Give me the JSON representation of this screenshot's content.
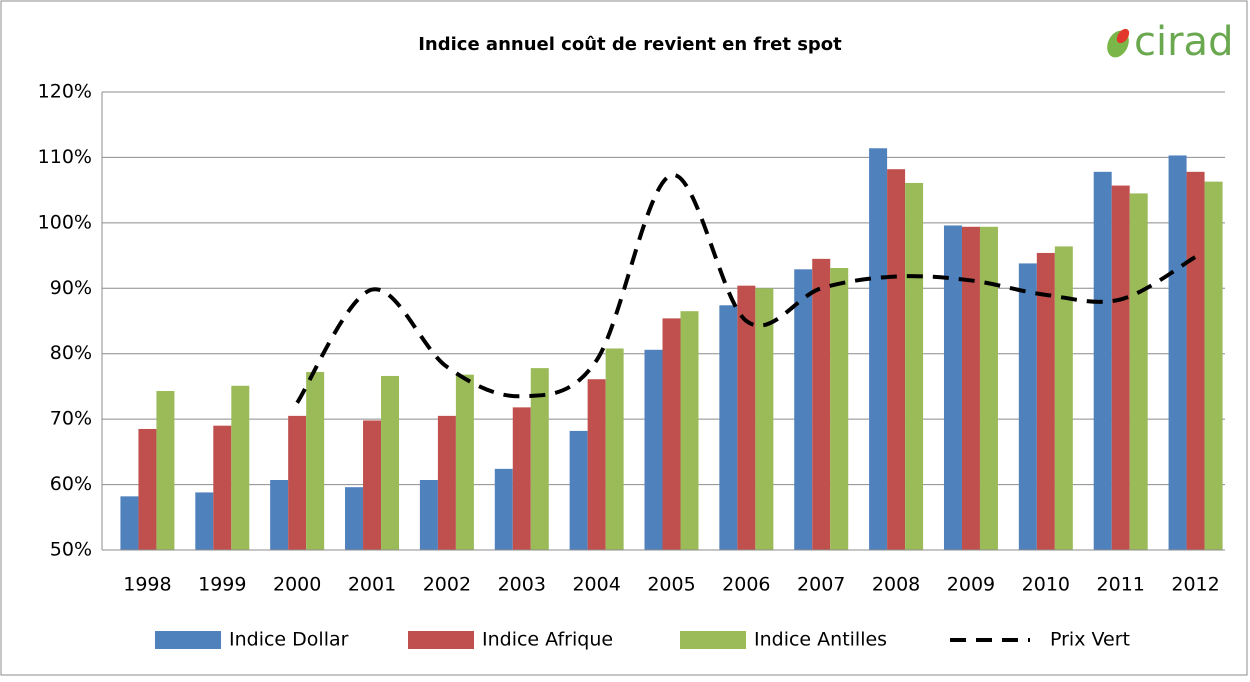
{
  "chart_data": {
    "type": "bar",
    "title": "Indice annuel coût de revient en fret spot",
    "logo": "cirad",
    "categories": [
      "1998",
      "1999",
      "2000",
      "2001",
      "2002",
      "2003",
      "2004",
      "2005",
      "2006",
      "2007",
      "2008",
      "2009",
      "2010",
      "2011",
      "2012"
    ],
    "series": [
      {
        "name": "Indice Dollar",
        "color": "#4f81bd",
        "values": [
          58.2,
          58.8,
          60.7,
          59.6,
          60.7,
          62.4,
          68.2,
          80.6,
          87.4,
          92.9,
          111.4,
          99.6,
          93.8,
          107.8,
          110.3
        ]
      },
      {
        "name": "Indice Afrique",
        "color": "#c0504d",
        "values": [
          68.5,
          69.0,
          70.5,
          69.8,
          70.5,
          71.8,
          76.1,
          85.4,
          90.4,
          94.5,
          108.2,
          99.4,
          95.4,
          105.7,
          107.8
        ]
      },
      {
        "name": "Indice Antilles",
        "color": "#9bbb59",
        "values": [
          74.3,
          75.1,
          77.2,
          76.6,
          76.8,
          77.8,
          80.8,
          86.5,
          90.0,
          93.1,
          106.1,
          99.4,
          96.4,
          104.5,
          106.3
        ]
      },
      {
        "name": "Prix Vert",
        "color": "#000000",
        "type": "line",
        "values": [
          null,
          null,
          72.5,
          89.8,
          78.0,
          73.5,
          79.0,
          107.3,
          85.0,
          90.0,
          91.8,
          91.2,
          89.0,
          88.3,
          94.8
        ]
      }
    ],
    "ylim": [
      50,
      120
    ],
    "yticks": [
      {
        "value": 50,
        "label": "50%"
      },
      {
        "value": 60,
        "label": "60%"
      },
      {
        "value": 70,
        "label": "70%"
      },
      {
        "value": 80,
        "label": "80%"
      },
      {
        "value": 90,
        "label": "90%"
      },
      {
        "value": 100,
        "label": "100%"
      },
      {
        "value": 110,
        "label": "110%"
      },
      {
        "value": 120,
        "label": "120%"
      }
    ],
    "grid": true,
    "legend": "bottom"
  }
}
